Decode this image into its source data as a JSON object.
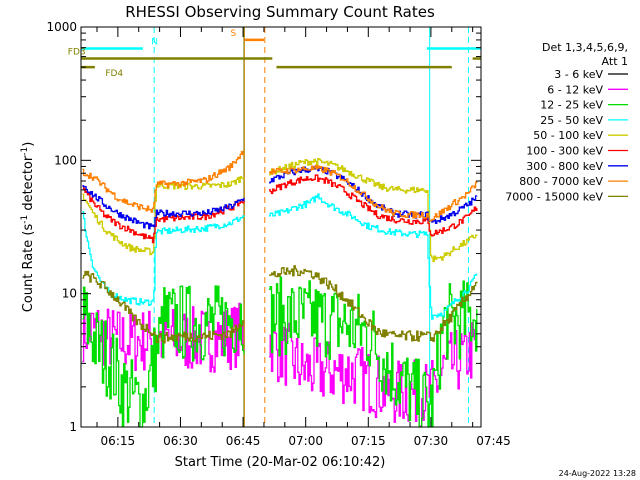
{
  "chart_data": {
    "type": "line",
    "title": "RHESSI Observing Summary Count Rates",
    "xlabel": "Start Time (20-Mar-02 06:10:42)",
    "ylabel": "Count Rate (s⁻¹ detector⁻¹)",
    "ylabel_parts": {
      "main": "Count Rate (s",
      "sup1": "-1",
      "mid": " detector",
      "sup2": "-1",
      "end": ")"
    },
    "y_scale": "log",
    "ylim": [
      1,
      1000
    ],
    "xlim_minutes": [
      6.17,
      102
    ],
    "x_ticks": [
      {
        "label": "06:15",
        "t": 15
      },
      {
        "label": "06:30",
        "t": 30
      },
      {
        "label": "06:45",
        "t": 45
      },
      {
        "label": "07:00",
        "t": 60
      },
      {
        "label": "07:15",
        "t": 75
      },
      {
        "label": "07:30",
        "t": 90
      },
      {
        "label": "07:45",
        "t": 105
      }
    ],
    "y_ticks": [
      {
        "label": "1",
        "v": 1
      },
      {
        "label": "10",
        "v": 10
      },
      {
        "label": "100",
        "v": 100
      },
      {
        "label": "1000",
        "v": 1000
      }
    ],
    "legend_title": [
      "Det 1,3,4,5,6,9,",
      "Att 1"
    ],
    "legend_position": "right",
    "timestamp": "24-Aug-2022 13:28",
    "series": [
      {
        "name": "3 - 6 keV",
        "color": "#000000",
        "points": []
      },
      {
        "name": "6 - 12 keV",
        "color": "#ff00ff",
        "noise": 0.5,
        "points": [
          [
            6.5,
            5.5
          ],
          [
            10,
            5.2
          ],
          [
            13,
            4.6
          ],
          [
            18,
            4.4
          ],
          [
            22,
            4.5
          ],
          [
            27,
            4.6
          ],
          [
            33,
            4.5
          ],
          [
            39,
            4.6
          ],
          [
            45,
            5.0
          ],
          [
            46,
            5.2
          ],
          [
            51,
            4.8
          ],
          [
            53,
            3.8
          ],
          [
            56,
            3.4
          ],
          [
            59,
            2.7
          ],
          [
            64,
            2.6
          ],
          [
            70,
            2.6
          ],
          [
            75,
            2.2
          ],
          [
            81,
            1.8
          ],
          [
            86,
            1.8
          ],
          [
            90,
            1.8
          ],
          [
            93,
            2.7
          ],
          [
            97,
            3.2
          ],
          [
            101,
            4.0
          ]
        ]
      },
      {
        "name": "12 - 25 keV",
        "color": "#00dd00",
        "noise": 0.6,
        "points": [
          [
            6.5,
            7.0
          ],
          [
            10,
            4.0
          ],
          [
            13,
            3.2
          ],
          [
            16,
            2.0
          ],
          [
            19,
            1.6
          ],
          [
            21,
            1.5
          ],
          [
            26,
            6.2
          ],
          [
            33,
            6.0
          ],
          [
            39,
            6.0
          ],
          [
            45,
            7.0
          ],
          [
            51,
            6.8
          ],
          [
            58,
            6.6
          ],
          [
            64,
            6.4
          ],
          [
            70,
            5.8
          ],
          [
            75,
            5.0
          ],
          [
            80,
            2.8
          ],
          [
            84,
            2.0
          ],
          [
            88,
            1.5
          ],
          [
            90,
            1.4
          ],
          [
            93,
            6.0
          ],
          [
            97,
            6.3
          ],
          [
            101,
            7.0
          ]
        ]
      },
      {
        "name": "25 - 50 keV",
        "color": "#00ffff",
        "points": [
          [
            6.5,
            40
          ],
          [
            7.5,
            26
          ],
          [
            9,
            16
          ],
          [
            11,
            12
          ],
          [
            13,
            10
          ],
          [
            17,
            9
          ],
          [
            21,
            8.6
          ],
          [
            23.5,
            8.7
          ],
          [
            24,
            29
          ],
          [
            30,
            30
          ],
          [
            36,
            31
          ],
          [
            42,
            34
          ],
          [
            45,
            38
          ],
          [
            51,
            38
          ],
          [
            55,
            41
          ],
          [
            58,
            45
          ],
          [
            61,
            48
          ],
          [
            63,
            55
          ],
          [
            64,
            50
          ],
          [
            67,
            44
          ],
          [
            71,
            38
          ],
          [
            75,
            32
          ],
          [
            80,
            29
          ],
          [
            85,
            28
          ],
          [
            89,
            28
          ],
          [
            90,
            6.8
          ],
          [
            93,
            7.2
          ],
          [
            96,
            9
          ],
          [
            99,
            11
          ],
          [
            101,
            14
          ]
        ]
      },
      {
        "name": "50 - 100 keV",
        "color": "#cccc00",
        "points": [
          [
            6.5,
            55
          ],
          [
            9,
            40
          ],
          [
            12,
            30
          ],
          [
            15,
            25
          ],
          [
            18,
            22
          ],
          [
            21,
            21
          ],
          [
            23.5,
            20.5
          ],
          [
            24,
            65
          ],
          [
            30,
            64
          ],
          [
            36,
            64
          ],
          [
            42,
            66
          ],
          [
            45,
            76
          ],
          [
            51,
            80
          ],
          [
            55,
            88
          ],
          [
            59,
            96
          ],
          [
            62,
            99
          ],
          [
            66,
            93
          ],
          [
            70,
            83
          ],
          [
            74,
            72
          ],
          [
            78,
            63
          ],
          [
            82,
            60
          ],
          [
            86,
            60
          ],
          [
            89,
            60
          ],
          [
            90,
            18
          ],
          [
            93,
            19
          ],
          [
            96,
            22
          ],
          [
            99,
            25
          ],
          [
            101,
            28
          ]
        ]
      },
      {
        "name": "100 - 300 keV",
        "color": "#ff0000",
        "points": [
          [
            6.5,
            62
          ],
          [
            9,
            48
          ],
          [
            12,
            38
          ],
          [
            15,
            33
          ],
          [
            18,
            30
          ],
          [
            21,
            27
          ],
          [
            23.5,
            25
          ],
          [
            24,
            36
          ],
          [
            30,
            37
          ],
          [
            36,
            38
          ],
          [
            42,
            44
          ],
          [
            45,
            50
          ],
          [
            51,
            58
          ],
          [
            55,
            66
          ],
          [
            59,
            72
          ],
          [
            62,
            74
          ],
          [
            65,
            70
          ],
          [
            69,
            60
          ],
          [
            73,
            48
          ],
          [
            77,
            39
          ],
          [
            81,
            36
          ],
          [
            85,
            35
          ],
          [
            89,
            35
          ],
          [
            90,
            28
          ],
          [
            93,
            30
          ],
          [
            96,
            33
          ],
          [
            99,
            38
          ],
          [
            101,
            45
          ]
        ]
      },
      {
        "name": "300 - 800 keV",
        "color": "#0000ee",
        "points": [
          [
            6.5,
            66
          ],
          [
            9,
            55
          ],
          [
            12,
            46
          ],
          [
            15,
            40
          ],
          [
            18,
            36
          ],
          [
            21,
            33
          ],
          [
            23.5,
            31
          ],
          [
            24,
            40
          ],
          [
            30,
            40
          ],
          [
            36,
            40
          ],
          [
            42,
            45
          ],
          [
            45,
            51
          ],
          [
            51,
            70
          ],
          [
            55,
            78
          ],
          [
            59,
            85
          ],
          [
            62,
            86
          ],
          [
            65,
            83
          ],
          [
            69,
            72
          ],
          [
            73,
            58
          ],
          [
            77,
            46
          ],
          [
            81,
            40
          ],
          [
            85,
            39
          ],
          [
            89,
            39
          ],
          [
            90,
            34
          ],
          [
            93,
            37
          ],
          [
            96,
            41
          ],
          [
            99,
            47
          ],
          [
            101,
            53
          ]
        ]
      },
      {
        "name": "800 - 7000 keV",
        "color": "#ff7f00",
        "points": [
          [
            6.5,
            82
          ],
          [
            9,
            75
          ],
          [
            12,
            62
          ],
          [
            15,
            52
          ],
          [
            18,
            47
          ],
          [
            21,
            44
          ],
          [
            23.5,
            42
          ],
          [
            24,
            66
          ],
          [
            30,
            67
          ],
          [
            36,
            71
          ],
          [
            42,
            90
          ],
          [
            45,
            118
          ],
          [
            51,
            82
          ],
          [
            55,
            83
          ],
          [
            59,
            86
          ],
          [
            62,
            87
          ],
          [
            65,
            84
          ],
          [
            69,
            73
          ],
          [
            73,
            58
          ],
          [
            77,
            46
          ],
          [
            81,
            40
          ],
          [
            85,
            39
          ],
          [
            89,
            39
          ],
          [
            90,
            36
          ],
          [
            93,
            42
          ],
          [
            96,
            49
          ],
          [
            99,
            57
          ],
          [
            101,
            68
          ]
        ]
      },
      {
        "name": "7000 - 15000 keV",
        "color": "#808000",
        "noise": 0.08,
        "points": [
          [
            6.5,
            14
          ],
          [
            9,
            13
          ],
          [
            12,
            11
          ],
          [
            15,
            9
          ],
          [
            17,
            7.5
          ],
          [
            19,
            6.4
          ],
          [
            21,
            5.7
          ],
          [
            23.5,
            5.2
          ],
          [
            24,
            4.6
          ],
          [
            30,
            4.8
          ],
          [
            36,
            4.8
          ],
          [
            42,
            5.0
          ],
          [
            45,
            6.5
          ],
          [
            51,
            13.5
          ],
          [
            55,
            14.5
          ],
          [
            59,
            15
          ],
          [
            62,
            14
          ],
          [
            65,
            12
          ],
          [
            69,
            9.5
          ],
          [
            73,
            7
          ],
          [
            77,
            5.2
          ],
          [
            81,
            4.8
          ],
          [
            85,
            4.8
          ],
          [
            89,
            4.8
          ],
          [
            90,
            4.6
          ],
          [
            93,
            5.8
          ],
          [
            96,
            7.5
          ],
          [
            99,
            10
          ],
          [
            101,
            12.5
          ]
        ]
      }
    ],
    "flag_bars": [
      {
        "label": "N",
        "color": "#00ffff",
        "y": 690,
        "segments": [
          [
            6.17,
            21
          ],
          [
            89,
            102
          ]
        ],
        "label_t": 23
      },
      {
        "label": "S",
        "color": "#ff7f00",
        "y": 800,
        "segments": [
          [
            45.3,
            50
          ]
        ],
        "label_t": 42
      },
      {
        "label": "FD3",
        "color": "#808000",
        "y": 580,
        "segments": [
          [
            6.17,
            52
          ],
          [
            100,
            102
          ]
        ],
        "label_t": 3
      },
      {
        "label": "FD4",
        "color": "#808000",
        "y": 500,
        "segments": [
          [
            6.17,
            9.5
          ],
          [
            53,
            95
          ]
        ],
        "label_t": 12
      }
    ],
    "vlines": [
      {
        "t": 23.7,
        "color": "#00ffff",
        "dashed": true
      },
      {
        "t": 89.7,
        "color": "#00ffff",
        "dashed": false
      },
      {
        "t": 99,
        "color": "#00ffff",
        "dashed": true
      },
      {
        "t": 45.3,
        "color": "#ff7f00",
        "dashed": false
      },
      {
        "t": 50.2,
        "color": "#ff7f00",
        "dashed": true
      },
      {
        "t": 45.2,
        "color": "#808000",
        "dashed": false
      }
    ]
  }
}
